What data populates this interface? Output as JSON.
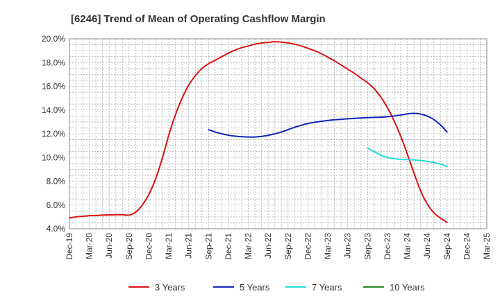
{
  "chart_data": {
    "type": "line",
    "title": "[6246]  Trend of Mean of Operating Cashflow Margin",
    "xlabel": "",
    "ylabel": "",
    "x_ticks": [
      "Dec-19",
      "Mar-20",
      "Jun-20",
      "Sep-20",
      "Dec-20",
      "Mar-21",
      "Jun-21",
      "Sep-21",
      "Dec-21",
      "Mar-22",
      "Jun-22",
      "Sep-22",
      "Dec-22",
      "Mar-23",
      "Jun-23",
      "Sep-23",
      "Dec-23",
      "Mar-24",
      "Jun-24",
      "Sep-24",
      "Dec-24",
      "Mar-25"
    ],
    "y_ticks": [
      "4.0%",
      "6.0%",
      "8.0%",
      "10.0%",
      "12.0%",
      "14.0%",
      "16.0%",
      "18.0%",
      "20.0%"
    ],
    "ylim": [
      4.0,
      20.0
    ],
    "grid": true,
    "legend_position": "bottom",
    "series": [
      {
        "name": "3 Years",
        "color": "#dd1111",
        "x": [
          "Dec-19",
          "Jan-20",
          "Feb-20",
          "Mar-20",
          "Apr-20",
          "May-20",
          "Jun-20",
          "Jul-20",
          "Aug-20",
          "Sep-20",
          "Oct-20",
          "Nov-20",
          "Dec-20",
          "Jan-21",
          "Feb-21",
          "Mar-21",
          "Apr-21",
          "May-21",
          "Jun-21",
          "Jul-21",
          "Aug-21",
          "Sep-21",
          "Oct-21",
          "Nov-21",
          "Dec-21",
          "Jan-22",
          "Feb-22",
          "Mar-22",
          "Apr-22",
          "May-22",
          "Jun-22",
          "Jul-22",
          "Aug-22",
          "Sep-22",
          "Oct-22",
          "Nov-22",
          "Dec-22",
          "Jan-23",
          "Feb-23",
          "Mar-23",
          "Apr-23",
          "May-23",
          "Jun-23",
          "Jul-23",
          "Aug-23",
          "Sep-23",
          "Oct-23",
          "Nov-23",
          "Dec-23",
          "Jan-24",
          "Feb-24",
          "Mar-24",
          "Apr-24",
          "May-24",
          "Jun-24",
          "Jul-24",
          "Aug-24",
          "Sep-24"
        ],
        "values": [
          4.9,
          5.0,
          5.05,
          5.1,
          5.12,
          5.15,
          5.17,
          5.18,
          5.18,
          5.15,
          5.4,
          6.0,
          6.9,
          8.2,
          9.9,
          11.9,
          13.6,
          15.0,
          16.1,
          16.9,
          17.5,
          17.9,
          18.2,
          18.5,
          18.8,
          19.05,
          19.25,
          19.4,
          19.55,
          19.65,
          19.7,
          19.75,
          19.72,
          19.65,
          19.55,
          19.4,
          19.2,
          19.0,
          18.75,
          18.45,
          18.15,
          17.8,
          17.45,
          17.1,
          16.7,
          16.3,
          15.8,
          15.1,
          14.2,
          13.1,
          11.8,
          10.3,
          8.7,
          7.2,
          6.1,
          5.35,
          4.9,
          4.55
        ]
      },
      {
        "name": "5 Years",
        "color": "#1122bb",
        "x": [
          "Sep-21",
          "Oct-21",
          "Nov-21",
          "Dec-21",
          "Jan-22",
          "Feb-22",
          "Mar-22",
          "Apr-22",
          "May-22",
          "Jun-22",
          "Jul-22",
          "Aug-22",
          "Sep-22",
          "Oct-22",
          "Nov-22",
          "Dec-22",
          "Jan-23",
          "Feb-23",
          "Mar-23",
          "Apr-23",
          "May-23",
          "Jun-23",
          "Jul-23",
          "Aug-23",
          "Sep-23",
          "Oct-23",
          "Nov-23",
          "Dec-23",
          "Jan-24",
          "Feb-24",
          "Mar-24",
          "Apr-24",
          "May-24",
          "Jun-24",
          "Jul-24",
          "Aug-24",
          "Sep-24"
        ],
        "values": [
          12.35,
          12.15,
          12.0,
          11.88,
          11.8,
          11.75,
          11.73,
          11.73,
          11.78,
          11.87,
          12.0,
          12.15,
          12.35,
          12.55,
          12.72,
          12.86,
          12.97,
          13.05,
          13.12,
          13.18,
          13.22,
          13.26,
          13.3,
          13.33,
          13.36,
          13.38,
          13.4,
          13.44,
          13.5,
          13.58,
          13.67,
          13.72,
          13.66,
          13.5,
          13.2,
          12.75,
          12.15
        ]
      },
      {
        "name": "7 Years",
        "color": "#22dddd",
        "x": [
          "Sep-23",
          "Oct-23",
          "Nov-23",
          "Dec-23",
          "Jan-24",
          "Feb-24",
          "Mar-24",
          "Apr-24",
          "May-24",
          "Jun-24",
          "Jul-24",
          "Aug-24",
          "Sep-24"
        ],
        "values": [
          10.8,
          10.5,
          10.2,
          10.0,
          9.9,
          9.85,
          9.82,
          9.8,
          9.75,
          9.68,
          9.58,
          9.45,
          9.25
        ]
      },
      {
        "name": "10 Years",
        "color": "#228822",
        "x": [],
        "values": []
      }
    ]
  }
}
